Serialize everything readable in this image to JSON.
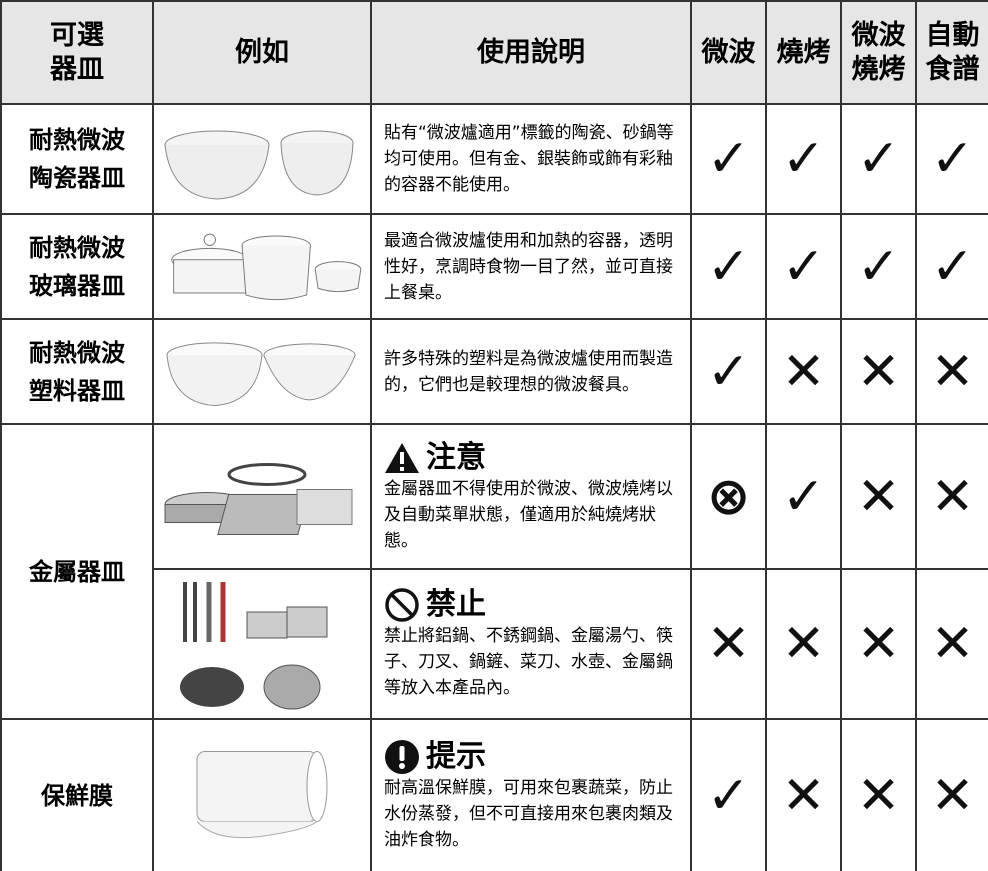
{
  "header": {
    "columns": [
      [
        "可選",
        "器皿"
      ],
      [
        "例如"
      ],
      [
        "使用說明"
      ],
      [
        "微波"
      ],
      [
        "燒烤"
      ],
      [
        "微波",
        "燒烤"
      ],
      [
        "自動",
        "食譜"
      ]
    ]
  },
  "rows": [
    {
      "item": [
        "耐熱微波",
        "陶瓷器皿"
      ],
      "entries": [
        {
          "description": "貼有“微波爐適用”標籤的陶瓷、砂鍋等均可使用。但有金、銀裝飾或飾有彩釉的容器不能使用。",
          "marks": [
            "✓",
            "✓",
            "✓",
            "✓"
          ]
        }
      ]
    },
    {
      "item": [
        "耐熱微波",
        "玻璃器皿"
      ],
      "entries": [
        {
          "description": "最適合微波爐使用和加熱的容器，透明性好，烹調時食物一目了然，並可直接上餐桌。",
          "marks": [
            "✓",
            "✓",
            "✓",
            "✓"
          ]
        }
      ]
    },
    {
      "item": [
        "耐熱微波",
        "塑料器皿"
      ],
      "entries": [
        {
          "description": "許多特殊的塑料是為微波爐使用而製造的，它們也是較理想的微波餐具。",
          "marks": [
            "✓",
            "✕",
            "✕",
            "✕"
          ]
        }
      ]
    },
    {
      "item": [
        "金屬器皿"
      ],
      "entries": [
        {
          "notice": "注意",
          "description": "金屬器皿不得使用於微波、微波燒烤以及自動菜單狀態，僅適用於純燒烤狀態。",
          "marks": [
            "⊗",
            "✓",
            "✕",
            "✕"
          ]
        },
        {
          "notice": "禁止",
          "description": "禁止將鋁鍋、不銹鋼鍋、金屬湯勺、筷子、刀叉、鍋鏟、菜刀、水壺、金屬鍋等放入本產品內。",
          "marks": [
            "✕",
            "✕",
            "✕",
            "✕"
          ]
        }
      ]
    },
    {
      "item": [
        "保鮮膜"
      ],
      "entries": [
        {
          "notice": "提示",
          "description": "耐高溫保鮮膜，可用來包裹蔬菜，防止水份蒸發，但不可直接用來包裹肉類及油炸食物。",
          "marks": [
            "✓",
            "✕",
            "✕",
            "✕"
          ]
        }
      ]
    }
  ]
}
